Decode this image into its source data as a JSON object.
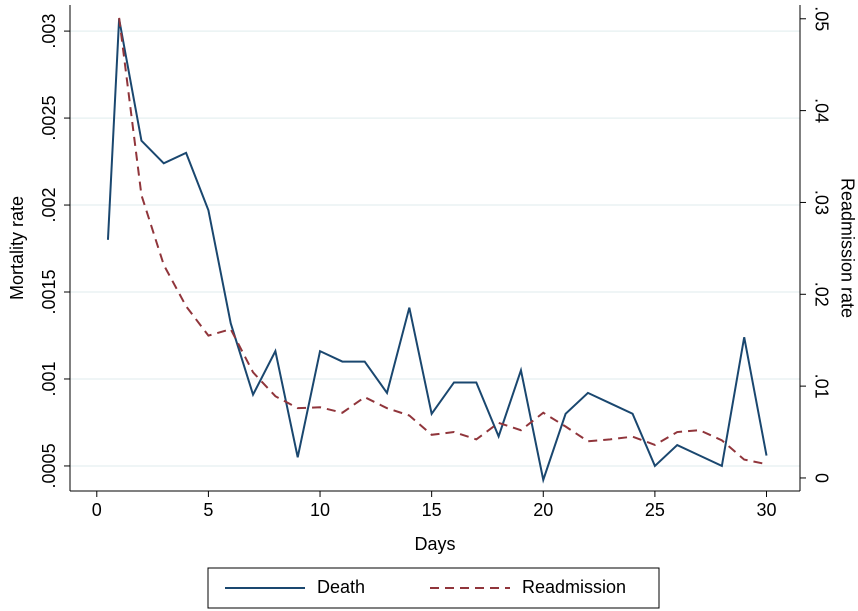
{
  "chart_data": {
    "type": "line",
    "x_label": "Days",
    "y_label": "Mortality rate",
    "y2_label": "Readmission rate",
    "xlim": [
      -1.2,
      31.5
    ],
    "xticks": [
      0,
      5,
      10,
      15,
      20,
      25,
      30
    ],
    "ylim": [
      0.000356,
      0.00315
    ],
    "yticks": [
      {
        "value": 0.0005,
        "label": ".0005"
      },
      {
        "value": 0.001,
        "label": ".001"
      },
      {
        "value": 0.0015,
        "label": ".0015"
      },
      {
        "value": 0.002,
        "label": ".002"
      },
      {
        "value": 0.0025,
        "label": ".0025"
      },
      {
        "value": 0.003,
        "label": ".003"
      }
    ],
    "y2lim": [
      -0.00142,
      0.0515
    ],
    "y2ticks": [
      0,
      {
        "value": 0.01,
        "label": ".01"
      },
      {
        "value": 0.02,
        "label": ".02"
      },
      {
        "value": 0.03,
        "label": ".03"
      },
      {
        "value": 0.04,
        "label": ".04"
      },
      {
        "value": 0.05,
        "label": ".05"
      }
    ],
    "grid": true,
    "series": [
      {
        "name": "Death",
        "color": "#1a476f",
        "dash": "solid",
        "x": [
          0.5,
          1,
          2,
          3,
          4,
          5,
          6,
          7,
          8,
          9,
          10,
          11,
          12,
          13,
          14,
          15,
          16,
          17,
          18,
          19,
          20,
          21,
          22,
          23,
          24,
          25,
          26,
          27,
          28,
          29,
          30
        ],
        "values": [
          0.0018,
          0.00307,
          0.00237,
          0.00224,
          0.0023,
          0.00197,
          0.00132,
          0.00091,
          0.00116,
          0.00055,
          0.00116,
          0.0011,
          0.0011,
          0.00092,
          0.00141,
          0.0008,
          0.00098,
          0.00098,
          0.00067,
          0.00105,
          0.00042,
          0.0008,
          0.00092,
          0.00086,
          0.0008,
          0.0005,
          0.00062,
          0.00056,
          0.0005,
          0.00124,
          0.00056
        ]
      },
      {
        "name": "Readmission",
        "color": "#90353b",
        "dash": "dashed",
        "axis": "y2",
        "x": [
          1,
          2,
          3,
          4,
          5,
          6,
          7,
          8,
          9,
          10,
          11,
          12,
          13,
          14,
          15,
          16,
          17,
          18,
          19,
          20,
          21,
          22,
          23,
          24,
          25,
          26,
          27,
          28,
          29,
          30
        ],
        "values": [
          0.0501,
          0.0308,
          0.0232,
          0.0187,
          0.0155,
          0.0162,
          0.0115,
          0.0089,
          0.0076,
          0.0077,
          0.0071,
          0.0088,
          0.0076,
          0.0068,
          0.0047,
          0.005,
          0.0042,
          0.006,
          0.0052,
          0.0071,
          0.0056,
          0.004,
          0.0042,
          0.0045,
          0.0036,
          0.005,
          0.0052,
          0.0041,
          0.002,
          0.0015
        ]
      }
    ]
  }
}
